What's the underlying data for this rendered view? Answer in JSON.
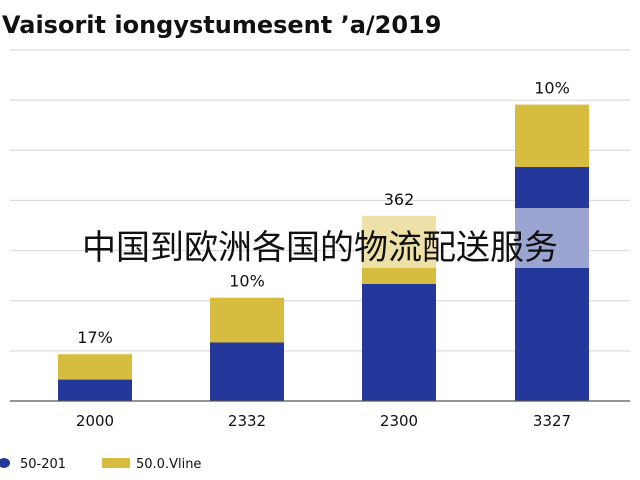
{
  "chart_data": {
    "type": "bar",
    "stacked": true,
    "title": "Vaisorit iongystumesent ʼa/2019",
    "categories": [
      "2000",
      "2332",
      "2300",
      "3327"
    ],
    "series": [
      {
        "name": "50-201",
        "color": "#24379a",
        "values": [
          11,
          30,
          60,
          120
        ]
      },
      {
        "name": "50.0.Vline",
        "color": "#d7bd3f",
        "values": [
          13,
          23,
          35,
          32
        ]
      }
    ],
    "data_labels": [
      "17%",
      "10%",
      "362",
      "10%"
    ],
    "ylim": [
      0,
      180
    ],
    "grid": true,
    "legend_position": "bottom-left",
    "overlay_text": "中国到欧洲各国的物流配送服务"
  }
}
